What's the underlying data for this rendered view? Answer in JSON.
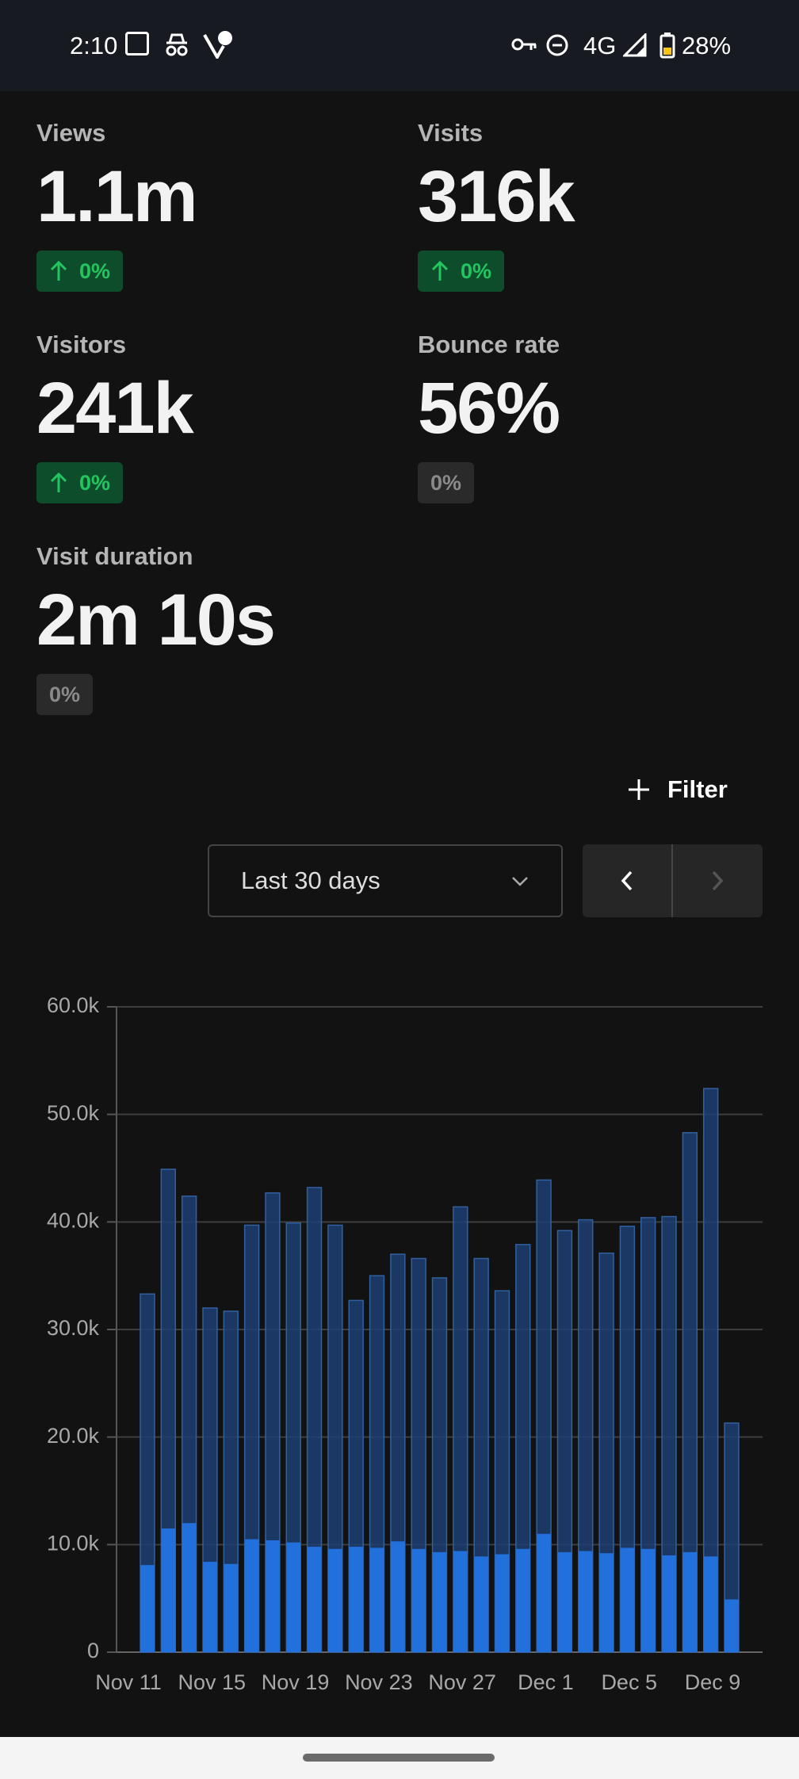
{
  "status_bar": {
    "time": "2:10",
    "network": "4G",
    "battery": "28%"
  },
  "stats": [
    {
      "label": "Views",
      "value": "1.1m",
      "change": "0%",
      "trend": "up"
    },
    {
      "label": "Visits",
      "value": "316k",
      "change": "0%",
      "trend": "up"
    },
    {
      "label": "Visitors",
      "value": "241k",
      "change": "0%",
      "trend": "up"
    },
    {
      "label": "Bounce rate",
      "value": "56%",
      "change": "0%",
      "trend": "neutral"
    },
    {
      "label": "Visit duration",
      "value": "2m 10s",
      "change": "0%",
      "trend": "neutral"
    }
  ],
  "filter": {
    "label": "Filter"
  },
  "period": {
    "label": "Last 30 days"
  },
  "chart_data": {
    "type": "bar",
    "categories": [
      "Nov 11",
      null,
      null,
      null,
      "Nov 15",
      null,
      null,
      null,
      "Nov 19",
      null,
      null,
      null,
      "Nov 23",
      null,
      null,
      null,
      "Nov 27",
      null,
      null,
      null,
      "Dec 1",
      null,
      null,
      null,
      "Dec 5",
      null,
      null,
      null,
      "Dec 9"
    ],
    "series": [
      {
        "color": "#1d3f73",
        "values": [
          33300,
          44900,
          42400,
          32000,
          31700,
          39700,
          42700,
          39900,
          43200,
          39700,
          32700,
          35000,
          37000,
          36600,
          34800,
          41400,
          36600,
          33600,
          37900,
          43900,
          39200,
          40200,
          37100,
          39600,
          40400,
          40500,
          48300,
          52400,
          21300
        ]
      },
      {
        "color": "#2170dc",
        "values": [
          8100,
          11500,
          12000,
          8400,
          8200,
          10500,
          10400,
          10200,
          9800,
          9600,
          9800,
          9700,
          10300,
          9600,
          9300,
          9400,
          8900,
          9100,
          9600,
          11000,
          9300,
          9400,
          9200,
          9700,
          9600,
          9000,
          9300,
          8900,
          4900
        ]
      }
    ],
    "ylim": [
      0,
      60000
    ],
    "yticks": [
      0,
      {
        "value": 10000,
        "label": "10.0k"
      },
      {
        "value": 20000,
        "label": "20.0k"
      },
      {
        "value": 30000,
        "label": "30.0k"
      },
      {
        "value": 40000,
        "label": "40.0k"
      },
      {
        "value": 50000,
        "label": "50.0k"
      },
      {
        "value": 60000,
        "label": "60.0k"
      }
    ],
    "grid": true
  }
}
